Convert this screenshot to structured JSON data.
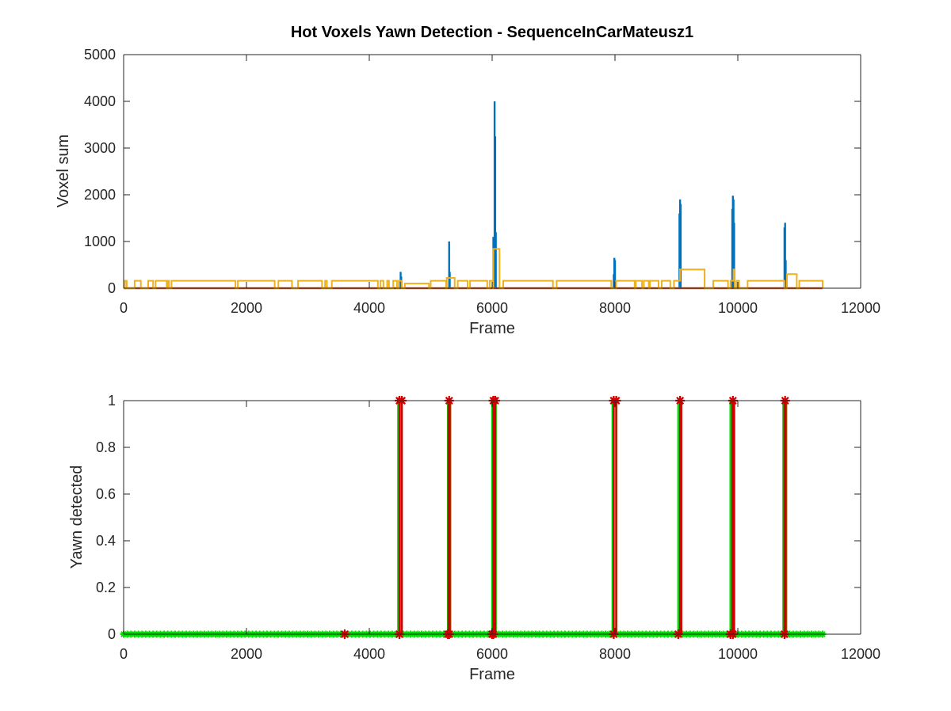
{
  "chart_data": [
    {
      "type": "line",
      "title": "Hot Voxels Yawn Detection - SequenceInCarMateusz1",
      "xlabel": "Frame",
      "ylabel": "Voxel sum",
      "xlim": [
        0,
        12000
      ],
      "ylim": [
        0,
        5000
      ],
      "xticks": [
        "0",
        "2000",
        "4000",
        "6000",
        "8000",
        "10000",
        "12000"
      ],
      "yticks": [
        "0",
        "1000",
        "2000",
        "3000",
        "4000",
        "5000"
      ],
      "grid": false,
      "colors": {
        "voxel_sum": "#0072BD",
        "baseline": "#D95319",
        "threshold": "#EDB120"
      },
      "series": [
        {
          "key": "voxel_sum",
          "style": "spikes",
          "points": [
            [
              4510,
              350
            ],
            [
              4520,
              250
            ],
            [
              5300,
              1000
            ],
            [
              5310,
              350
            ],
            [
              6020,
              1100
            ],
            [
              6040,
              4000
            ],
            [
              6050,
              3250
            ],
            [
              6060,
              1200
            ],
            [
              7980,
              300
            ],
            [
              7990,
              650
            ],
            [
              8000,
              600
            ],
            [
              9050,
              1600
            ],
            [
              9060,
              1900
            ],
            [
              9070,
              1800
            ],
            [
              9910,
              1700
            ],
            [
              9920,
              1980
            ],
            [
              9930,
              1900
            ],
            [
              9940,
              1400
            ],
            [
              10760,
              1300
            ],
            [
              10770,
              1400
            ],
            [
              10780,
              600
            ]
          ]
        },
        {
          "key": "baseline",
          "style": "flat",
          "points": [
            [
              0,
              0
            ],
            [
              11380,
              0
            ]
          ]
        },
        {
          "key": "threshold",
          "style": "step",
          "points": [
            [
              0,
              0
            ],
            [
              20,
              0
            ],
            [
              20,
              160
            ],
            [
              50,
              160
            ],
            [
              50,
              0
            ],
            [
              180,
              0
            ],
            [
              180,
              160
            ],
            [
              280,
              160
            ],
            [
              280,
              0
            ],
            [
              400,
              0
            ],
            [
              400,
              160
            ],
            [
              480,
              160
            ],
            [
              480,
              0
            ],
            [
              520,
              0
            ],
            [
              520,
              160
            ],
            [
              700,
              160
            ],
            [
              700,
              0
            ],
            [
              720,
              0
            ],
            [
              720,
              160
            ],
            [
              740,
              160
            ],
            [
              740,
              0
            ],
            [
              780,
              0
            ],
            [
              780,
              160
            ],
            [
              1820,
              160
            ],
            [
              1820,
              0
            ],
            [
              1860,
              0
            ],
            [
              1860,
              160
            ],
            [
              2460,
              160
            ],
            [
              2460,
              0
            ],
            [
              2520,
              0
            ],
            [
              2520,
              160
            ],
            [
              2740,
              160
            ],
            [
              2740,
              0
            ],
            [
              2840,
              0
            ],
            [
              2840,
              160
            ],
            [
              3230,
              160
            ],
            [
              3230,
              0
            ],
            [
              3280,
              0
            ],
            [
              3280,
              160
            ],
            [
              3310,
              160
            ],
            [
              3310,
              0
            ],
            [
              3390,
              0
            ],
            [
              3390,
              160
            ],
            [
              4140,
              160
            ],
            [
              4140,
              0
            ],
            [
              4180,
              0
            ],
            [
              4180,
              160
            ],
            [
              4230,
              160
            ],
            [
              4230,
              0
            ],
            [
              4290,
              0
            ],
            [
              4290,
              160
            ],
            [
              4320,
              160
            ],
            [
              4320,
              0
            ],
            [
              4390,
              0
            ],
            [
              4390,
              160
            ],
            [
              4450,
              160
            ],
            [
              4450,
              0
            ],
            [
              4480,
              0
            ],
            [
              4480,
              160
            ],
            [
              4530,
              160
            ],
            [
              4530,
              0
            ],
            [
              4580,
              0
            ],
            [
              4580,
              100
            ],
            [
              4970,
              100
            ],
            [
              4970,
              0
            ],
            [
              5000,
              0
            ],
            [
              5000,
              160
            ],
            [
              5250,
              160
            ],
            [
              5250,
              0
            ],
            [
              5260,
              0
            ],
            [
              5260,
              220
            ],
            [
              5390,
              220
            ],
            [
              5390,
              0
            ],
            [
              5440,
              0
            ],
            [
              5440,
              160
            ],
            [
              5600,
              160
            ],
            [
              5600,
              0
            ],
            [
              5640,
              0
            ],
            [
              5640,
              160
            ],
            [
              5920,
              160
            ],
            [
              5920,
              0
            ],
            [
              5960,
              0
            ],
            [
              5960,
              160
            ],
            [
              6010,
              160
            ],
            [
              6010,
              0
            ],
            [
              6020,
              0
            ],
            [
              6020,
              840
            ],
            [
              6120,
              840
            ],
            [
              6120,
              0
            ],
            [
              6180,
              0
            ],
            [
              6180,
              160
            ],
            [
              6990,
              160
            ],
            [
              6990,
              0
            ],
            [
              7050,
              0
            ],
            [
              7050,
              160
            ],
            [
              7940,
              160
            ],
            [
              7940,
              0
            ],
            [
              8020,
              0
            ],
            [
              8020,
              160
            ],
            [
              8320,
              160
            ],
            [
              8320,
              0
            ],
            [
              8340,
              0
            ],
            [
              8340,
              160
            ],
            [
              8440,
              160
            ],
            [
              8440,
              0
            ],
            [
              8470,
              0
            ],
            [
              8470,
              160
            ],
            [
              8550,
              160
            ],
            [
              8550,
              0
            ],
            [
              8570,
              0
            ],
            [
              8570,
              160
            ],
            [
              8710,
              160
            ],
            [
              8710,
              0
            ],
            [
              8760,
              0
            ],
            [
              8760,
              160
            ],
            [
              8900,
              160
            ],
            [
              8900,
              0
            ],
            [
              8960,
              0
            ],
            [
              8960,
              160
            ],
            [
              9060,
              160
            ],
            [
              9060,
              400
            ],
            [
              9460,
              400
            ],
            [
              9460,
              0
            ],
            [
              9600,
              0
            ],
            [
              9600,
              160
            ],
            [
              9840,
              160
            ],
            [
              9840,
              0
            ],
            [
              9880,
              0
            ],
            [
              9880,
              160
            ],
            [
              9930,
              160
            ],
            [
              9930,
              400
            ],
            [
              9950,
              400
            ],
            [
              9950,
              0
            ],
            [
              9980,
              0
            ],
            [
              9980,
              160
            ],
            [
              10020,
              160
            ],
            [
              10020,
              0
            ],
            [
              10160,
              0
            ],
            [
              10160,
              160
            ],
            [
              10760,
              160
            ],
            [
              10760,
              0
            ],
            [
              10800,
              0
            ],
            [
              10800,
              300
            ],
            [
              10960,
              300
            ],
            [
              10960,
              0
            ],
            [
              11000,
              0
            ],
            [
              11000,
              160
            ],
            [
              11380,
              160
            ],
            [
              11380,
              0
            ]
          ]
        }
      ]
    },
    {
      "type": "line",
      "xlabel": "Frame",
      "ylabel": "Yawn detected",
      "xlim": [
        0,
        12000
      ],
      "ylim": [
        0,
        1
      ],
      "xticks": [
        "0",
        "2000",
        "4000",
        "6000",
        "8000",
        "10000",
        "12000"
      ],
      "yticks": [
        "0",
        "0.2",
        "0.4",
        "0.6",
        "0.8",
        "1"
      ],
      "grid": false,
      "colors": {
        "ground_truth": "#00E000",
        "detection": "#D00000"
      },
      "x_start": 0,
      "x_end": 11380,
      "ground_truth_intervals": [
        [
          4470,
          4520
        ],
        [
          5280,
          5320
        ],
        [
          6000,
          6060
        ],
        [
          7960,
          8020
        ],
        [
          9030,
          9080
        ],
        [
          9880,
          9940
        ],
        [
          10740,
          10790
        ]
      ],
      "detection_intervals": [
        [
          4490,
          4530
        ],
        [
          5290,
          5310
        ],
        [
          6020,
          6050
        ],
        [
          7980,
          8020
        ],
        [
          9060,
          9080
        ],
        [
          9910,
          9940
        ],
        [
          10760,
          10780
        ]
      ],
      "detection_markers": [
        [
          3600,
          0
        ],
        [
          4490,
          0
        ],
        [
          4490,
          1
        ],
        [
          4530,
          1
        ],
        [
          5280,
          0
        ],
        [
          5300,
          0
        ],
        [
          5300,
          1
        ],
        [
          6000,
          0
        ],
        [
          6020,
          0
        ],
        [
          6020,
          1
        ],
        [
          6050,
          1
        ],
        [
          7980,
          0
        ],
        [
          7980,
          1
        ],
        [
          8020,
          1
        ],
        [
          9030,
          0
        ],
        [
          9060,
          1
        ],
        [
          9880,
          0
        ],
        [
          9920,
          0
        ],
        [
          9920,
          1
        ],
        [
          10760,
          0
        ],
        [
          10770,
          1
        ]
      ]
    }
  ]
}
